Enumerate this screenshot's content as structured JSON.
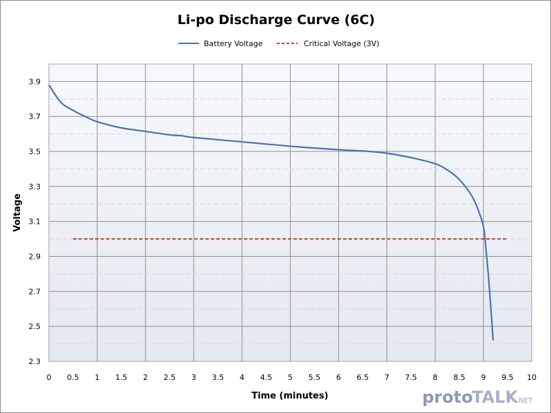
{
  "chart_data": {
    "type": "line",
    "title": "Li-po Discharge Curve (6C)",
    "xlabel": "Time (minutes)",
    "ylabel": "Voltage",
    "xlim": [
      0,
      10
    ],
    "ylim": [
      2.3,
      4.0
    ],
    "x_ticks": [
      "0",
      "0.5",
      "1",
      "1.5",
      "2",
      "2.5",
      "3",
      "3.5",
      "4",
      "4.5",
      "5",
      "5.5",
      "6",
      "6.5",
      "7",
      "7.5",
      "8",
      "8.5",
      "9",
      "9.5",
      "10"
    ],
    "y_ticks": [
      "2.3",
      "2.5",
      "2.7",
      "2.9",
      "3.1",
      "3.3",
      "3.5",
      "3.7",
      "3.9"
    ],
    "grid": true,
    "legend_position": "top",
    "series": [
      {
        "name": "Battery Voltage",
        "color": "#4a72aa",
        "style": "solid",
        "x": [
          0,
          0.25,
          0.5,
          0.75,
          1,
          1.5,
          2,
          2.5,
          2.75,
          3,
          4,
          5,
          6,
          6.5,
          7,
          7.5,
          8,
          8.25,
          8.5,
          8.75,
          8.9,
          9,
          9.05,
          9.1,
          9.15,
          9.2
        ],
        "y": [
          3.88,
          3.78,
          3.735,
          3.7,
          3.67,
          3.635,
          3.615,
          3.595,
          3.59,
          3.58,
          3.555,
          3.53,
          3.51,
          3.503,
          3.49,
          3.465,
          3.43,
          3.395,
          3.34,
          3.25,
          3.16,
          3.07,
          2.95,
          2.8,
          2.62,
          2.42
        ]
      },
      {
        "name": "Critical Voltage  (3V)",
        "color": "#c0403a",
        "style": "dashed",
        "x": [
          0.5,
          9.5
        ],
        "y": [
          3.0,
          3.0
        ]
      }
    ]
  },
  "watermark": {
    "text": "protoTALK.NET"
  }
}
